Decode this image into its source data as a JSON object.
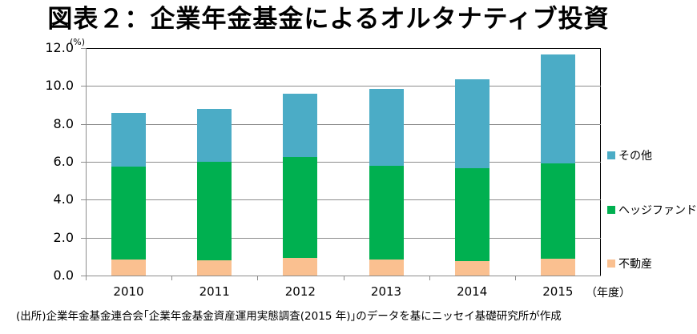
{
  "title": "図表２：企業年金基金によるオルタナティブ投資",
  "source": "(出所)企業年金基金連合会｢企業年金基金資産運用実態調査(2015 年)｣のデータを基にニッセイ基礎研究所が作成",
  "colors": {
    "real_estate": "#FAC090",
    "hedge_fund": "#00B050",
    "other": "#4BACC6"
  },
  "chart_data": {
    "type": "bar",
    "stacked": true,
    "title": "図表２：企業年金基金によるオルタナティブ投資",
    "xlabel": "（年度）",
    "ylabel": "(%)",
    "ylim": [
      0,
      12
    ],
    "yticks": [
      "0.0",
      "2.0",
      "4.0",
      "6.0",
      "8.0",
      "10.0",
      "12.0"
    ],
    "grid": true,
    "legend_position": "right",
    "categories": [
      "2010",
      "2011",
      "2012",
      "2013",
      "2014",
      "2015"
    ],
    "series": [
      {
        "name": "不動産",
        "color": "#FAC090",
        "values": [
          0.85,
          0.8,
          0.95,
          0.85,
          0.75,
          0.9
        ]
      },
      {
        "name": "ヘッジファンド",
        "color": "#00B050",
        "values": [
          4.9,
          5.2,
          5.3,
          4.95,
          4.9,
          5.0
        ]
      },
      {
        "name": "その他",
        "color": "#4BACC6",
        "values": [
          2.85,
          2.8,
          3.35,
          4.05,
          4.7,
          5.75
        ]
      }
    ],
    "totals": [
      8.6,
      8.8,
      9.6,
      9.85,
      10.35,
      11.65
    ]
  },
  "legend": [
    {
      "label": "その他",
      "color": "#4BACC6"
    },
    {
      "label": "ヘッジファンド",
      "color": "#00B050"
    },
    {
      "label": "不動産",
      "color": "#FAC090"
    }
  ],
  "axis": {
    "unit": "(%)",
    "x_unit": "（年度）"
  }
}
